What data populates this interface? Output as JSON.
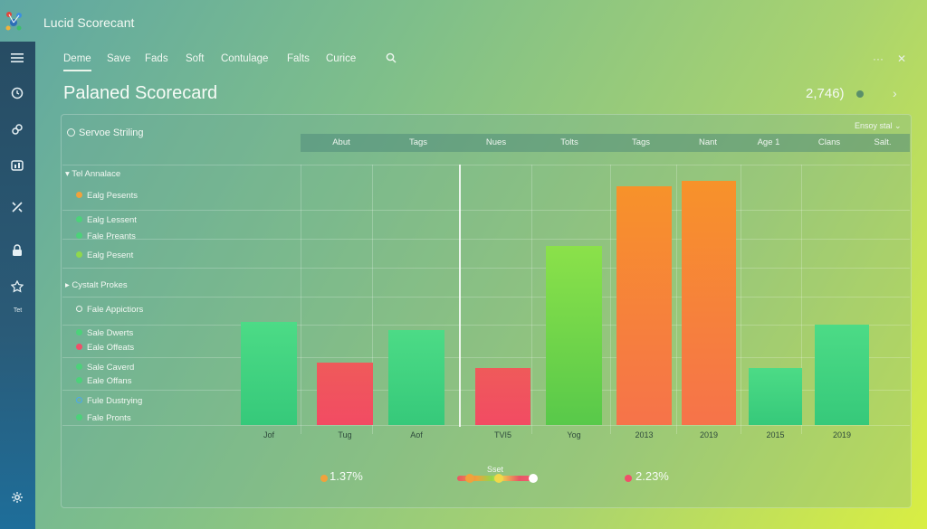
{
  "app": {
    "title": "Lucid Scorecant",
    "logo_icon": "app-logo-icon"
  },
  "menu": {
    "items": [
      "Deme",
      "Save",
      "Fads",
      "Soft",
      "Contulage",
      "Falts",
      "Curice"
    ],
    "active_index": 0,
    "search_icon": "search-icon",
    "more_label": "···",
    "close_label": "✕"
  },
  "sidebar": {
    "icons": [
      "menu-icon",
      "clock-icon",
      "link-icon",
      "chart-icon",
      "tools-icon",
      "lock-icon",
      "badge-icon",
      "gear-icon"
    ],
    "caption": "Tet"
  },
  "page": {
    "title": "Palaned Scorecard",
    "count": "2,746)",
    "next_label": "›"
  },
  "panel": {
    "label": "Servoe Striling",
    "right_menu": "Ensoy stal ⌄",
    "columns": [
      "Abut",
      "Tags",
      "Nues",
      "Tolts",
      "Tags",
      "Nant",
      "Age 1",
      "Clans",
      "Salt."
    ]
  },
  "tree": {
    "group1": {
      "label": "Tel Annalace",
      "arrow": "▾"
    },
    "group1_items": [
      {
        "label": "Ealg Pesents",
        "color": "#f0a23c"
      },
      {
        "label": "Ealg Lessent",
        "color": "#4cd27a"
      },
      {
        "label": "Fale Preants",
        "color": "#4cd27a"
      },
      {
        "label": "Ealg Pesent",
        "color": "#8fd84c"
      }
    ],
    "group2": {
      "label": "Cystalt Prokes",
      "arrow": "▸"
    },
    "group2_items": [
      {
        "label": "Fale Appictiors",
        "color": "ring"
      },
      {
        "label": "Sale Dwerts",
        "color": "#4cd27a"
      },
      {
        "label": "Eale Offeats",
        "color": "#f0506a"
      },
      {
        "label": "Sale Caverd",
        "color": "#4cd27a"
      },
      {
        "label": "Eale Offans",
        "color": "#4cd27a"
      },
      {
        "label": "Fule Dustrying",
        "color": "ring-blue"
      },
      {
        "label": "Fale Pronts",
        "color": "#4cd27a"
      }
    ]
  },
  "chart_data": {
    "type": "bar",
    "categories": [
      "Jof",
      "Tug",
      "Aof",
      "TVI5",
      "Yog",
      "2013",
      "2019",
      "2015",
      "2019"
    ],
    "values": [
      38,
      23,
      35,
      21,
      66,
      88,
      90,
      21,
      37
    ],
    "colors": [
      "green",
      "red",
      "green",
      "red",
      "lime",
      "orange",
      "orange",
      "green",
      "green"
    ],
    "ylim": [
      0,
      100
    ],
    "title": "",
    "xlabel": "",
    "ylabel": ""
  },
  "legend": {
    "left_value": "1.37%",
    "left_color": "#f0a23c",
    "slider_label": "Sset",
    "right_value": "2.23%",
    "right_color": "#f0506a"
  }
}
